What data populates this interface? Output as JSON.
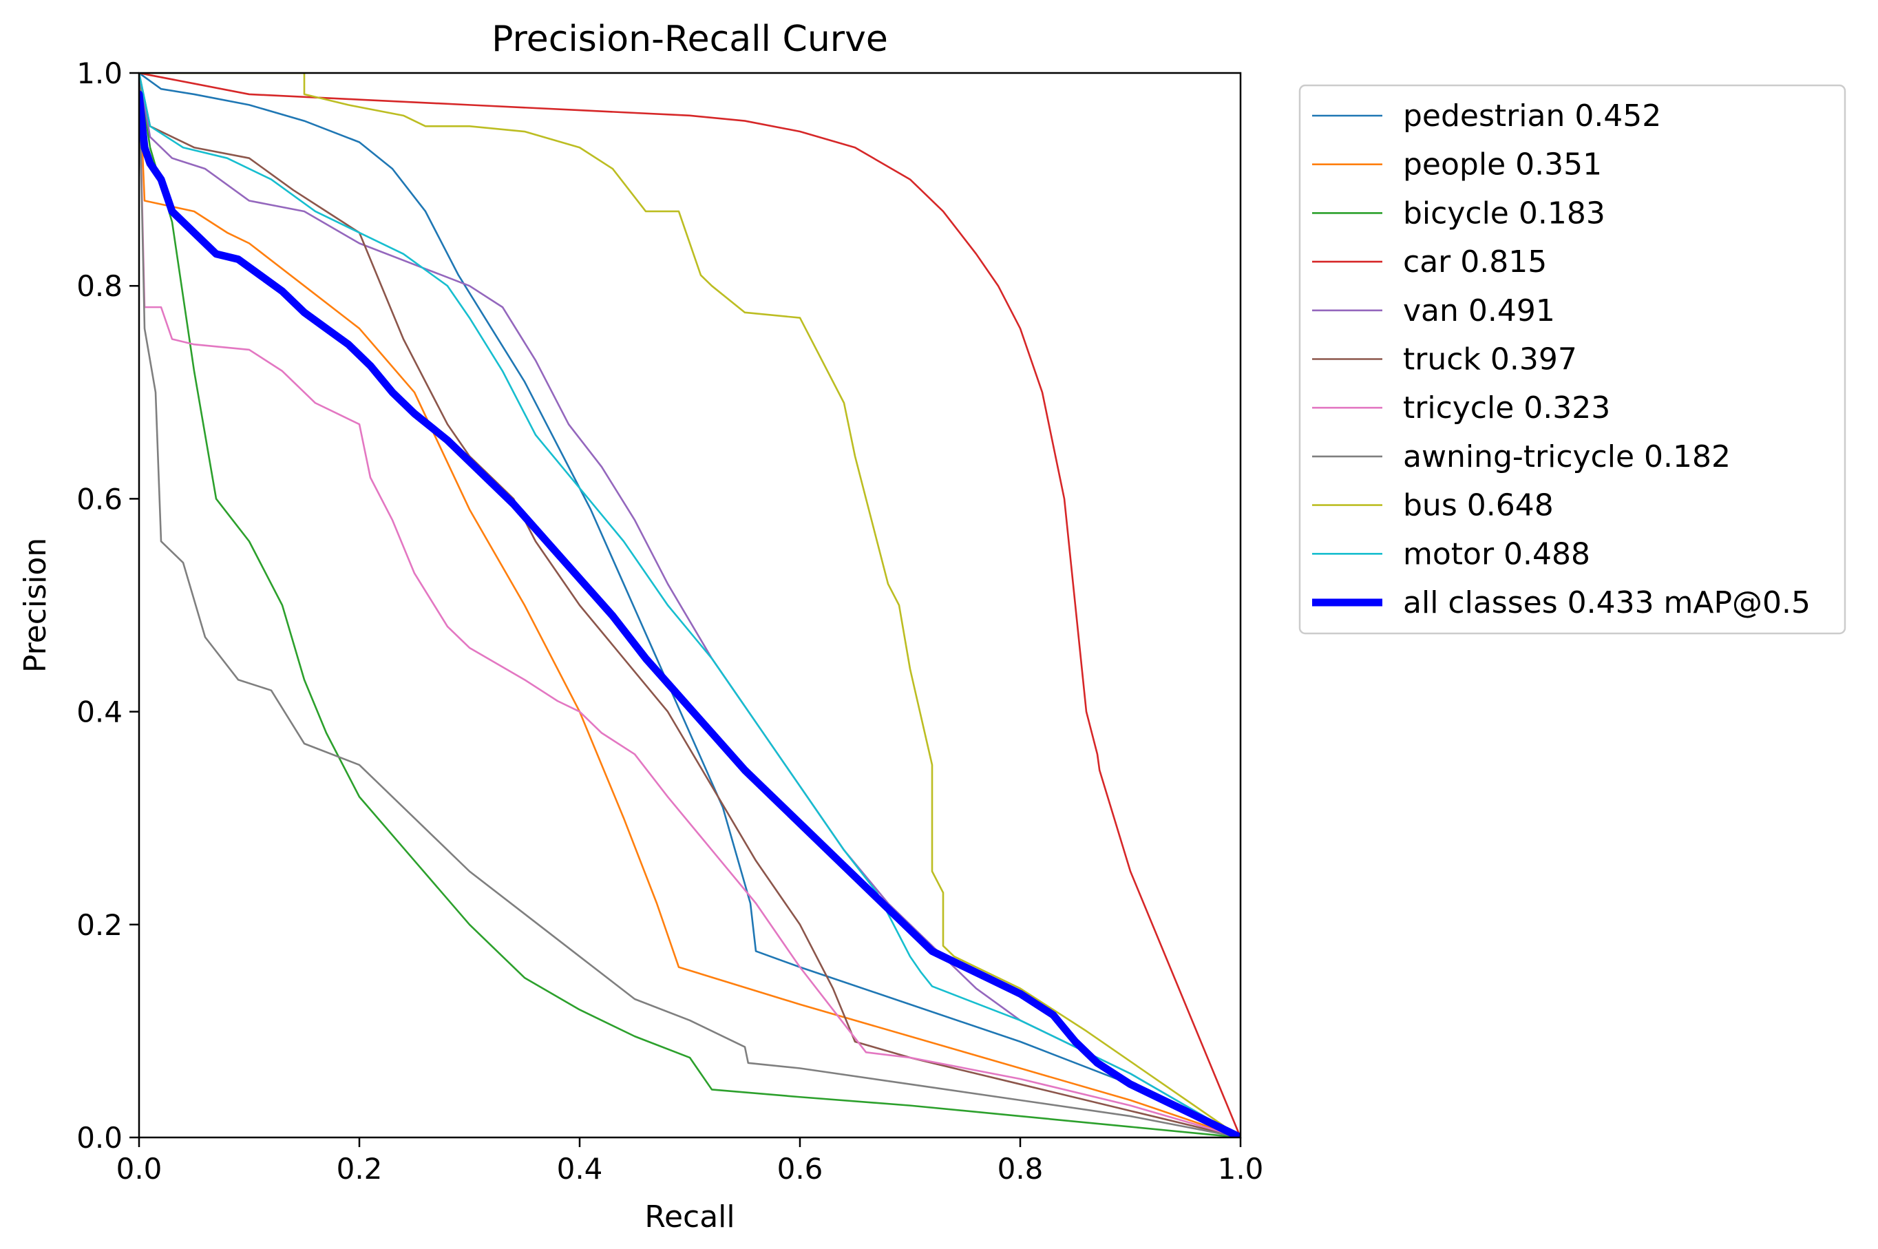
{
  "chart_data": {
    "type": "line",
    "title": "Precision-Recall Curve",
    "xlabel": "Recall",
    "ylabel": "Precision",
    "xlim": [
      0.0,
      1.0
    ],
    "ylim": [
      0.0,
      1.0
    ],
    "xticks": [
      "0.0",
      "0.2",
      "0.4",
      "0.6",
      "0.8",
      "1.0"
    ],
    "yticks": [
      "0.0",
      "0.2",
      "0.4",
      "0.6",
      "0.8",
      "1.0"
    ],
    "grid": false,
    "legend_position": "outside-upper-right",
    "series": [
      {
        "name": "pedestrian 0.452",
        "color": "#1f77b4",
        "x": [
          0.0,
          0.02,
          0.05,
          0.1,
          0.15,
          0.2,
          0.23,
          0.26,
          0.29,
          0.32,
          0.35,
          0.38,
          0.41,
          0.44,
          0.47,
          0.5,
          0.53,
          0.555,
          0.56,
          0.6,
          0.7,
          0.8,
          0.9,
          1.0
        ],
        "y": [
          1.0,
          0.985,
          0.98,
          0.97,
          0.955,
          0.935,
          0.91,
          0.87,
          0.81,
          0.76,
          0.71,
          0.65,
          0.59,
          0.52,
          0.45,
          0.38,
          0.31,
          0.22,
          0.175,
          0.16,
          0.125,
          0.09,
          0.05,
          0.0
        ]
      },
      {
        "name": "people 0.351",
        "color": "#ff7f0e",
        "x": [
          0.0,
          0.005,
          0.05,
          0.08,
          0.1,
          0.15,
          0.2,
          0.25,
          0.3,
          0.35,
          0.4,
          0.44,
          0.47,
          0.48,
          0.49,
          0.6,
          0.7,
          0.8,
          0.9,
          1.0
        ],
        "y": [
          1.0,
          0.88,
          0.87,
          0.85,
          0.84,
          0.8,
          0.76,
          0.7,
          0.59,
          0.5,
          0.4,
          0.3,
          0.22,
          0.19,
          0.16,
          0.125,
          0.095,
          0.065,
          0.035,
          0.0
        ]
      },
      {
        "name": "bicycle 0.183",
        "color": "#2ca02c",
        "x": [
          0.0,
          0.01,
          0.03,
          0.05,
          0.07,
          0.1,
          0.13,
          0.15,
          0.17,
          0.2,
          0.25,
          0.3,
          0.35,
          0.4,
          0.45,
          0.5,
          0.52,
          0.6,
          0.7,
          0.8,
          0.9,
          1.0
        ],
        "y": [
          1.0,
          0.93,
          0.86,
          0.72,
          0.6,
          0.56,
          0.5,
          0.43,
          0.38,
          0.32,
          0.26,
          0.2,
          0.15,
          0.12,
          0.095,
          0.075,
          0.045,
          0.038,
          0.03,
          0.02,
          0.01,
          0.0
        ]
      },
      {
        "name": "car 0.815",
        "color": "#d62728",
        "x": [
          0.0,
          0.05,
          0.1,
          0.2,
          0.3,
          0.4,
          0.5,
          0.55,
          0.6,
          0.65,
          0.7,
          0.73,
          0.76,
          0.78,
          0.8,
          0.82,
          0.84,
          0.85,
          0.86,
          0.87,
          0.872,
          0.9,
          1.0
        ],
        "y": [
          1.0,
          0.99,
          0.98,
          0.975,
          0.97,
          0.965,
          0.96,
          0.955,
          0.945,
          0.93,
          0.9,
          0.87,
          0.83,
          0.8,
          0.76,
          0.7,
          0.6,
          0.5,
          0.4,
          0.36,
          0.345,
          0.25,
          0.0
        ]
      },
      {
        "name": "van 0.491",
        "color": "#9467bd",
        "x": [
          0.0,
          0.01,
          0.03,
          0.06,
          0.1,
          0.15,
          0.2,
          0.25,
          0.3,
          0.33,
          0.36,
          0.39,
          0.42,
          0.45,
          0.48,
          0.52,
          0.56,
          0.6,
          0.64,
          0.68,
          0.72,
          0.76,
          0.8,
          0.9,
          1.0
        ],
        "y": [
          1.0,
          0.94,
          0.92,
          0.91,
          0.88,
          0.87,
          0.84,
          0.82,
          0.8,
          0.78,
          0.73,
          0.67,
          0.63,
          0.58,
          0.52,
          0.45,
          0.39,
          0.33,
          0.27,
          0.22,
          0.18,
          0.14,
          0.11,
          0.06,
          0.0
        ]
      },
      {
        "name": "truck 0.397",
        "color": "#8c564b",
        "x": [
          0.0,
          0.01,
          0.05,
          0.1,
          0.14,
          0.17,
          0.2,
          0.22,
          0.24,
          0.26,
          0.28,
          0.3,
          0.32,
          0.34,
          0.36,
          0.4,
          0.44,
          0.48,
          0.52,
          0.56,
          0.6,
          0.63,
          0.65,
          0.7,
          0.8,
          0.9,
          1.0
        ],
        "y": [
          1.0,
          0.95,
          0.93,
          0.92,
          0.89,
          0.87,
          0.85,
          0.8,
          0.75,
          0.71,
          0.67,
          0.64,
          0.62,
          0.6,
          0.56,
          0.5,
          0.45,
          0.4,
          0.33,
          0.26,
          0.2,
          0.14,
          0.09,
          0.075,
          0.05,
          0.025,
          0.0
        ]
      },
      {
        "name": "tricycle 0.323",
        "color": "#e377c2",
        "x": [
          0.0,
          0.005,
          0.02,
          0.03,
          0.05,
          0.1,
          0.13,
          0.16,
          0.18,
          0.2,
          0.21,
          0.23,
          0.25,
          0.28,
          0.3,
          0.35,
          0.38,
          0.4,
          0.42,
          0.45,
          0.48,
          0.52,
          0.56,
          0.6,
          0.63,
          0.66,
          0.7,
          0.8,
          0.9,
          1.0
        ],
        "y": [
          1.0,
          0.78,
          0.78,
          0.75,
          0.745,
          0.74,
          0.72,
          0.69,
          0.68,
          0.67,
          0.62,
          0.58,
          0.53,
          0.48,
          0.46,
          0.43,
          0.41,
          0.4,
          0.38,
          0.36,
          0.32,
          0.27,
          0.22,
          0.16,
          0.12,
          0.08,
          0.075,
          0.055,
          0.03,
          0.0
        ]
      },
      {
        "name": "awning-tricycle 0.182",
        "color": "#7f7f7f",
        "x": [
          0.0,
          0.005,
          0.015,
          0.02,
          0.04,
          0.06,
          0.09,
          0.12,
          0.15,
          0.2,
          0.25,
          0.3,
          0.35,
          0.4,
          0.45,
          0.5,
          0.55,
          0.553,
          0.6,
          0.7,
          0.8,
          0.9,
          1.0
        ],
        "y": [
          1.0,
          0.76,
          0.7,
          0.56,
          0.54,
          0.47,
          0.43,
          0.42,
          0.37,
          0.35,
          0.3,
          0.25,
          0.21,
          0.17,
          0.13,
          0.11,
          0.085,
          0.07,
          0.065,
          0.05,
          0.035,
          0.02,
          0.0
        ]
      },
      {
        "name": "bus 0.648",
        "color": "#bcbd22",
        "x": [
          0.0,
          0.15,
          0.15,
          0.19,
          0.24,
          0.26,
          0.3,
          0.35,
          0.4,
          0.43,
          0.46,
          0.49,
          0.51,
          0.52,
          0.52,
          0.55,
          0.6,
          0.6,
          0.6,
          0.6,
          0.64,
          0.64,
          0.64,
          0.64,
          0.64,
          0.65,
          0.66,
          0.68,
          0.69,
          0.7,
          0.72,
          0.72,
          0.72,
          0.73,
          0.73,
          0.73,
          0.74,
          0.76,
          0.8,
          0.86,
          1.0
        ],
        "y": [
          1.0,
          1.0,
          0.98,
          0.97,
          0.96,
          0.95,
          0.95,
          0.945,
          0.93,
          0.91,
          0.87,
          0.87,
          0.81,
          0.8,
          0.8,
          0.775,
          0.77,
          0.77,
          0.77,
          0.77,
          0.69,
          0.69,
          0.69,
          0.69,
          0.69,
          0.64,
          0.6,
          0.52,
          0.5,
          0.44,
          0.35,
          0.35,
          0.25,
          0.23,
          0.23,
          0.18,
          0.17,
          0.16,
          0.14,
          0.1,
          0.0
        ]
      },
      {
        "name": "motor 0.488",
        "color": "#17becf",
        "x": [
          0.0,
          0.01,
          0.04,
          0.08,
          0.12,
          0.16,
          0.2,
          0.24,
          0.28,
          0.3,
          0.33,
          0.36,
          0.4,
          0.44,
          0.48,
          0.52,
          0.56,
          0.6,
          0.64,
          0.67,
          0.69,
          0.7,
          0.71,
          0.72,
          0.8,
          0.9,
          1.0
        ],
        "y": [
          1.0,
          0.95,
          0.93,
          0.92,
          0.9,
          0.87,
          0.85,
          0.83,
          0.8,
          0.77,
          0.72,
          0.66,
          0.61,
          0.56,
          0.5,
          0.45,
          0.39,
          0.33,
          0.27,
          0.23,
          0.19,
          0.17,
          0.155,
          0.142,
          0.11,
          0.06,
          0.0
        ]
      },
      {
        "name": "all classes 0.433 mAP@0.5",
        "color": "#0000ff",
        "bold": true,
        "x": [
          0.0,
          0.005,
          0.01,
          0.02,
          0.03,
          0.05,
          0.07,
          0.09,
          0.11,
          0.13,
          0.15,
          0.17,
          0.19,
          0.21,
          0.23,
          0.25,
          0.28,
          0.31,
          0.34,
          0.37,
          0.4,
          0.43,
          0.46,
          0.49,
          0.52,
          0.55,
          0.58,
          0.61,
          0.64,
          0.67,
          0.7,
          0.72,
          0.74,
          0.77,
          0.8,
          0.83,
          0.85,
          0.87,
          0.9,
          0.95,
          1.0
        ],
        "y": [
          0.98,
          0.93,
          0.915,
          0.9,
          0.87,
          0.85,
          0.83,
          0.825,
          0.81,
          0.795,
          0.775,
          0.76,
          0.745,
          0.725,
          0.7,
          0.68,
          0.655,
          0.625,
          0.595,
          0.56,
          0.525,
          0.49,
          0.45,
          0.415,
          0.38,
          0.345,
          0.315,
          0.285,
          0.255,
          0.225,
          0.195,
          0.175,
          0.165,
          0.15,
          0.135,
          0.115,
          0.09,
          0.07,
          0.05,
          0.025,
          0.0
        ]
      }
    ]
  }
}
